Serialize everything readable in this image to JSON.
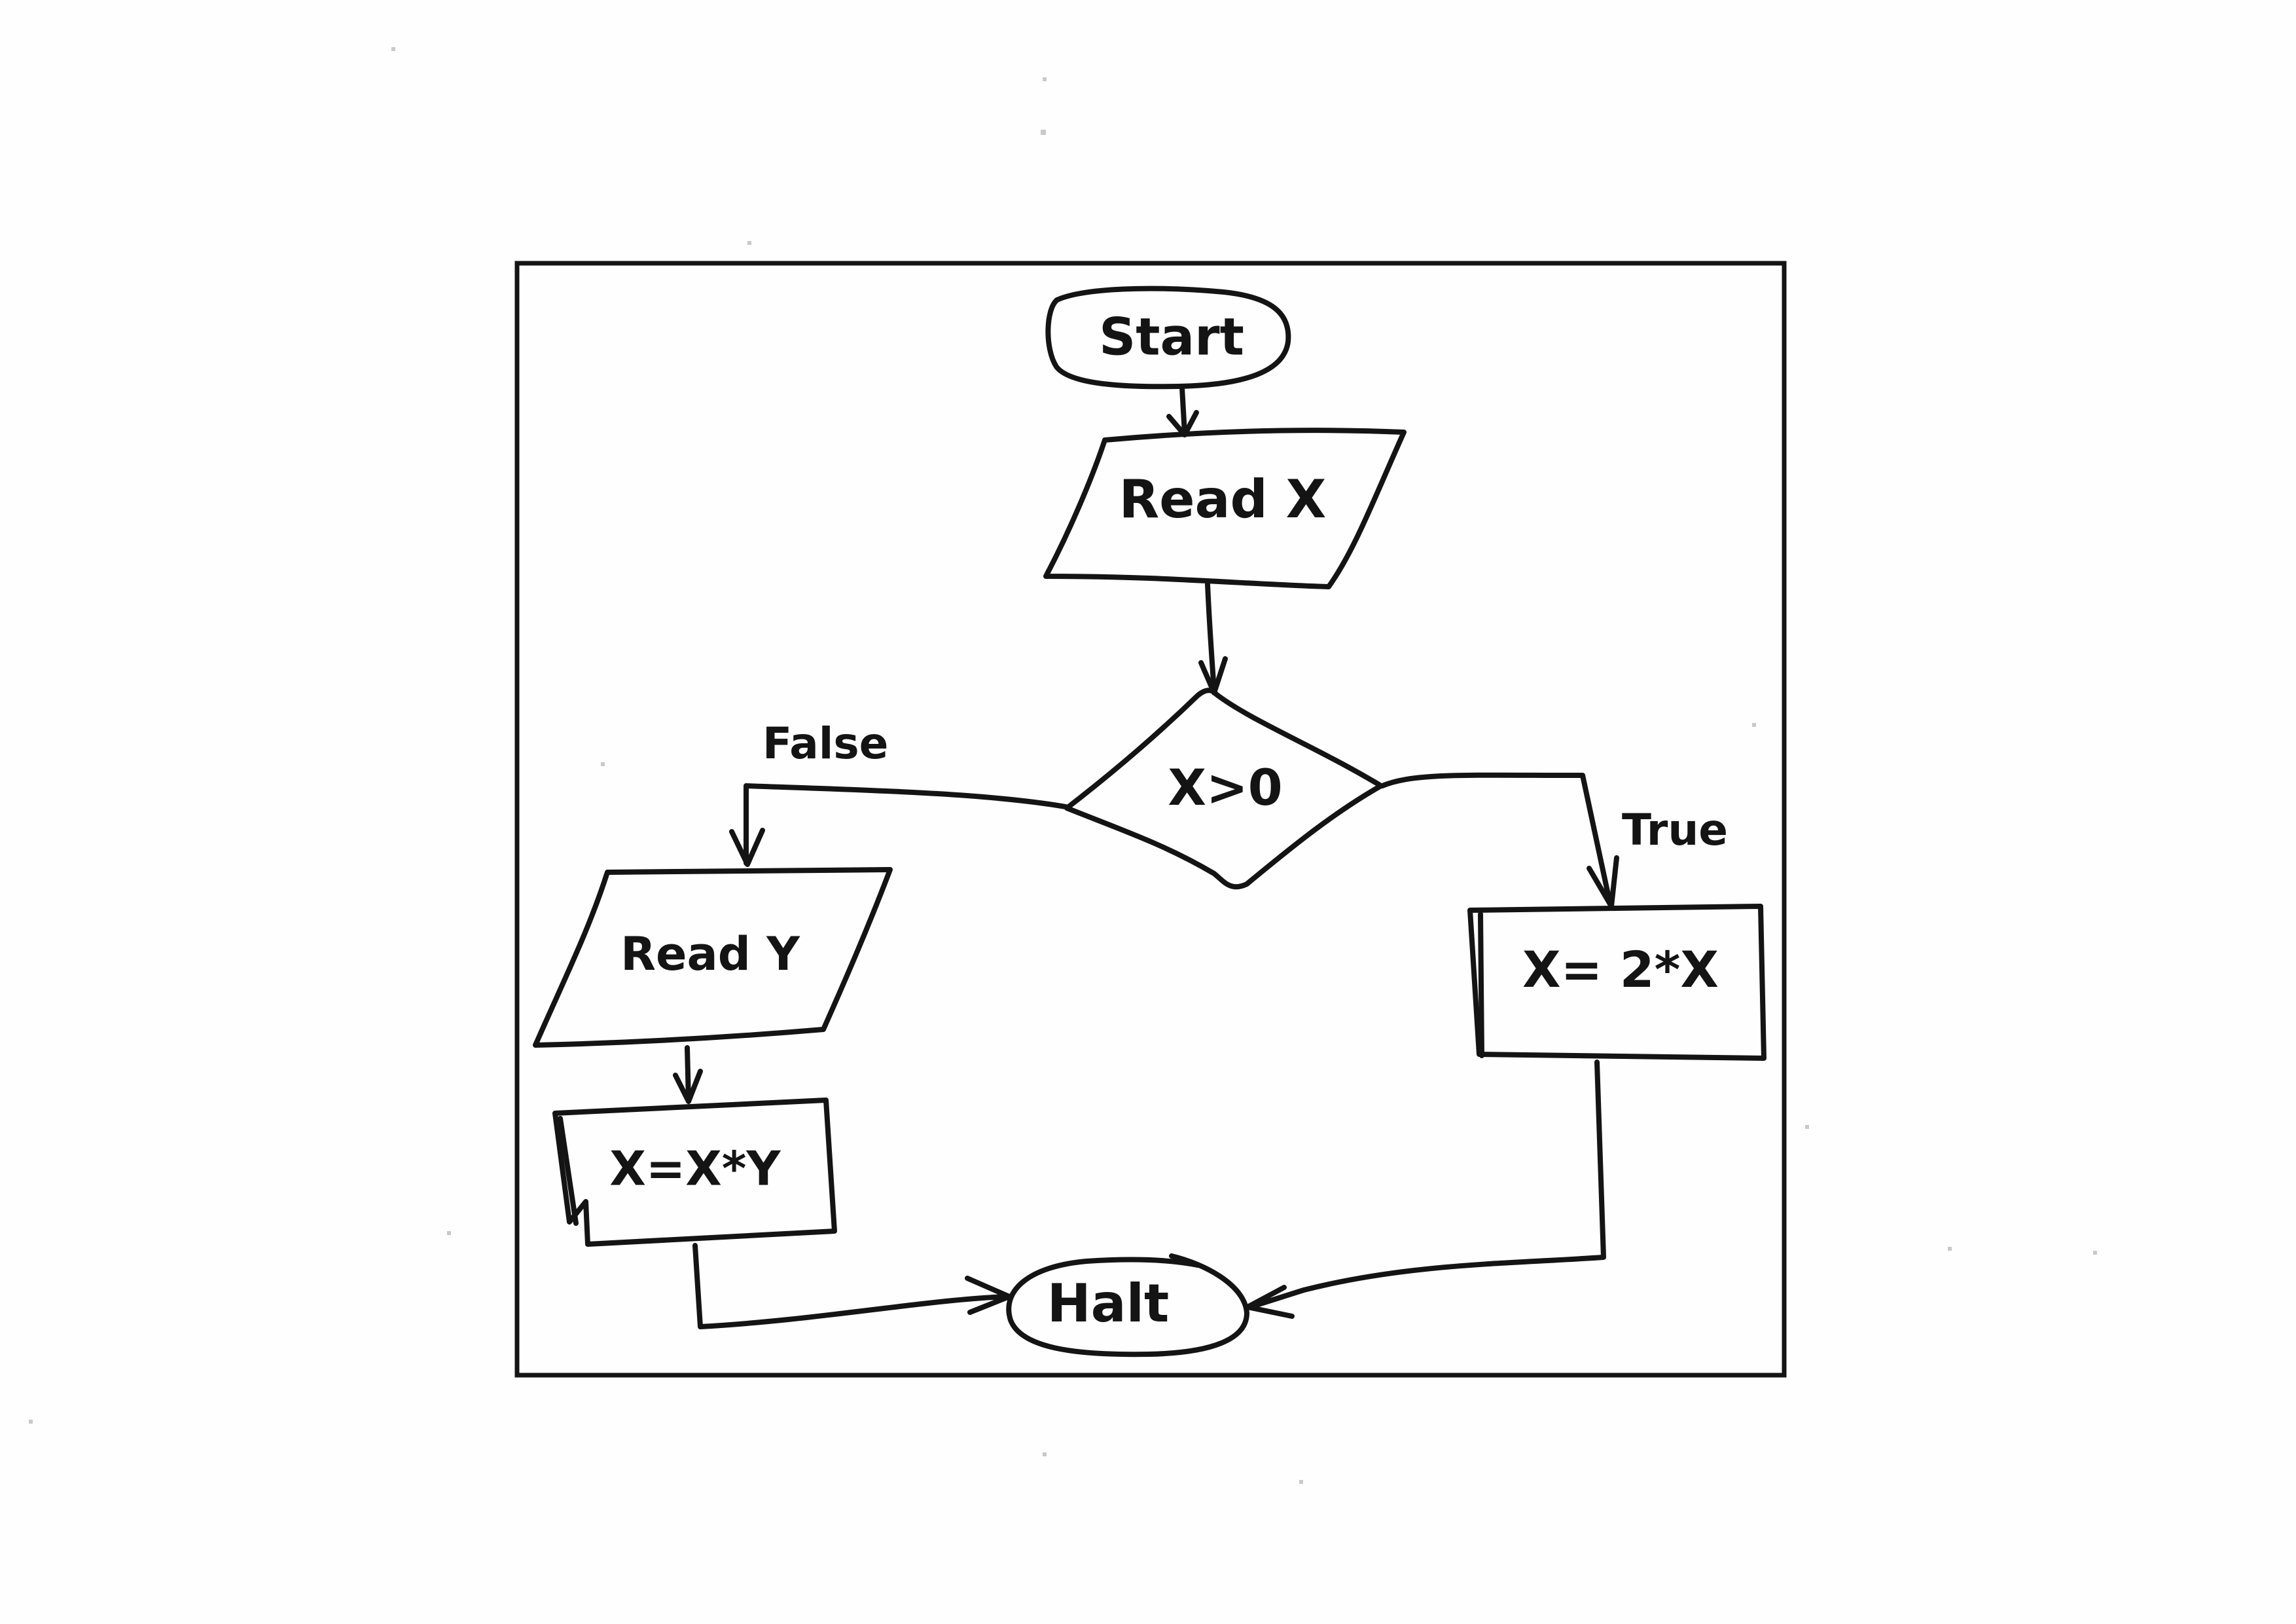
{
  "flowchart": {
    "nodes": {
      "start": "Start",
      "read_x": "Read X",
      "decision": "X>0",
      "read_y": "Read Y",
      "assign_true": "X= 2*X",
      "assign_false": "X=X*Y",
      "halt": "Halt"
    },
    "edge_labels": {
      "false": "False",
      "true": "True"
    }
  }
}
